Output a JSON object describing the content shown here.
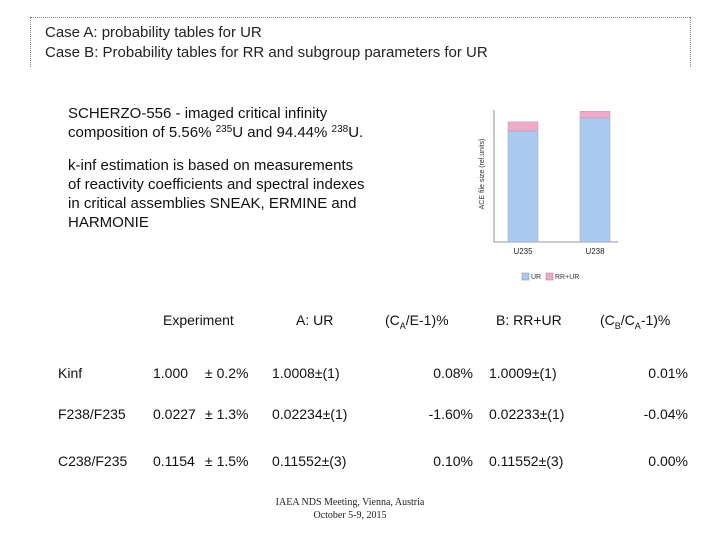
{
  "header": {
    "line1": "Case A: probability tables for UR",
    "line2": "Case B: Probability tables for RR and subgroup parameters for UR"
  },
  "description": {
    "l1": "SCHERZO-556 - imaged critical infinity",
    "l2_a": "composition of 5.56% ",
    "l2_sup1": "235",
    "l2_b": "U and 94.44% ",
    "l2_sup2": "238",
    "l2_c": "U.",
    "l3": "k-inf  estimation is based on measurements",
    "l4": "of reactivity coefficients and spectral indexes",
    "l5": "in critical assemblies SNEAK, ERMINE and",
    "l6": "HARMONIE"
  },
  "chart_data": {
    "type": "bar",
    "stacked": true,
    "categories": [
      "U235",
      "U238"
    ],
    "series": [
      {
        "name": "UR",
        "values": [
          0.84,
          0.94
        ],
        "color": "#a9cbf2"
      },
      {
        "name": "RR+UR",
        "values": [
          0.07,
          0.05
        ],
        "color": "#f2a9c9"
      }
    ],
    "ylabel": "ACE file size (rel.units)",
    "ylim": [
      0,
      1
    ],
    "grid": false,
    "legend": "bottom"
  },
  "table": {
    "headers": {
      "experiment": "Experiment",
      "a_ur": "A: UR",
      "ratio_a_pre": "(C",
      "ratio_a_sub": "A",
      "ratio_a_post": "/E-1)%",
      "b_rrur": "B: RR+UR",
      "ratio_b_pre": "(C",
      "ratio_b_sub1": "B",
      "ratio_b_mid": "/C",
      "ratio_b_sub2": "A",
      "ratio_b_post": "-1)%"
    },
    "rows": [
      {
        "name": "Kinf",
        "exp": "1.000",
        "unc": "± 0.2%",
        "a": "1.0008±(1)",
        "ra": "0.08%",
        "b": "1.0009±(1)",
        "rb": "0.01%"
      },
      {
        "name": "F238/F235",
        "exp": "0.0227",
        "unc": "± 1.3%",
        "a": "0.02234±(1)",
        "ra": "-1.60%",
        "b": "0.02233±(1)",
        "rb": "-0.04%"
      },
      {
        "name": "C238/F235",
        "exp": "0.1154",
        "unc": "± 1.5%",
        "a": "0.11552±(3)",
        "ra": "0.10%",
        "b": "0.11552±(3)",
        "rb": "0.00%"
      }
    ]
  },
  "footer": {
    "line1": "IAEA NDS Meeting, Vienna, Austria",
    "line2": "October 5-9, 2015"
  }
}
